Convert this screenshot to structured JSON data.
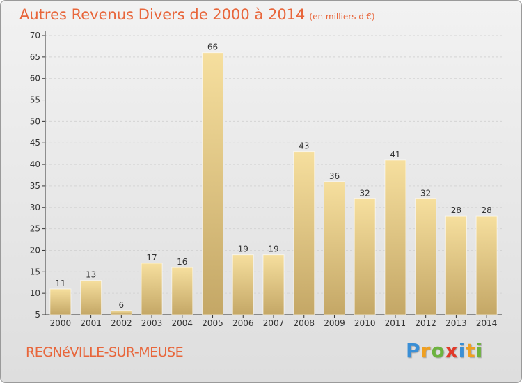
{
  "title": "Autres Revenus Divers de 2000 à 2014",
  "subtitle": "(en milliers d'€)",
  "commune": "REGNéVILLE-SUR-MEUSE",
  "logo": {
    "text": "Proxiti",
    "letters": [
      {
        "ch": "P",
        "color": "#3a8fd6"
      },
      {
        "ch": "r",
        "color": "#f0a020"
      },
      {
        "ch": "o",
        "color": "#6db33f"
      },
      {
        "ch": "x",
        "color": "#e23a2a"
      },
      {
        "ch": "i",
        "color": "#3a8fd6"
      },
      {
        "ch": "t",
        "color": "#f0a020"
      },
      {
        "ch": "i",
        "color": "#6db33f"
      }
    ]
  },
  "colors": {
    "title": "#e8663b",
    "bar_light": "#f6df9e",
    "bar_dark": "#c4a766",
    "axis": "#333333",
    "grid": "#d4d4d4"
  },
  "chart_data": {
    "type": "bar",
    "categories": [
      "2000",
      "2001",
      "2002",
      "2003",
      "2004",
      "2005",
      "2006",
      "2007",
      "2008",
      "2009",
      "2010",
      "2011",
      "2012",
      "2013",
      "2014"
    ],
    "values": [
      11,
      13,
      6,
      17,
      16,
      66,
      19,
      19,
      43,
      36,
      32,
      41,
      32,
      28,
      28
    ],
    "ylim": [
      5,
      70
    ],
    "yticks": [
      5,
      10,
      15,
      20,
      25,
      30,
      35,
      40,
      45,
      50,
      55,
      60,
      65,
      70
    ],
    "grid": "horizontal dashed",
    "data_labels": true
  }
}
